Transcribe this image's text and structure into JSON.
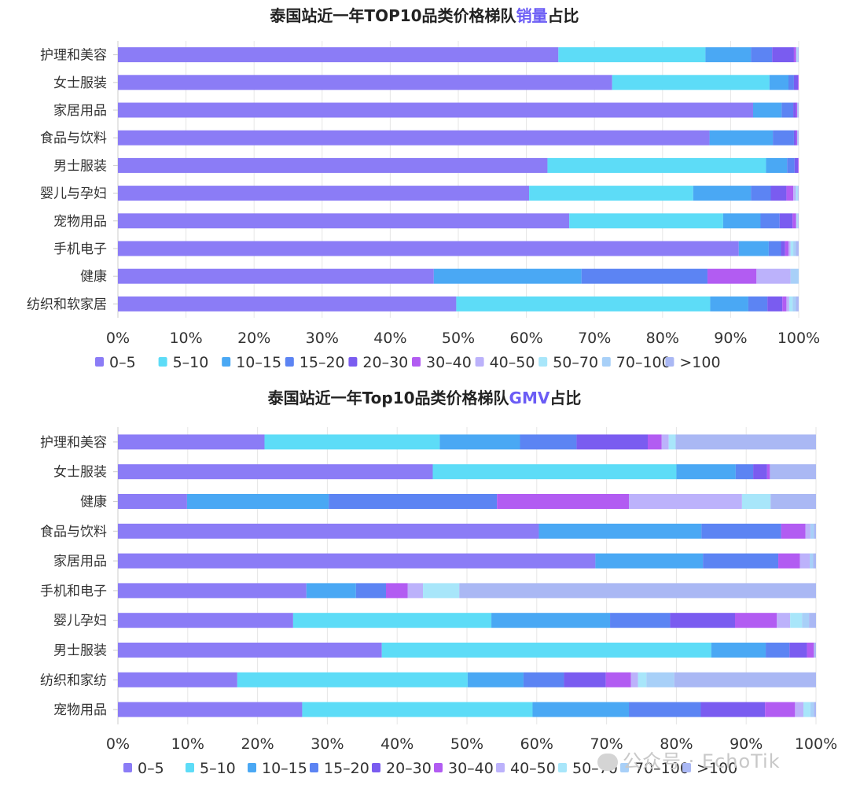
{
  "colors": [
    "#8b7cf6",
    "#5ddcf7",
    "#4aa8f4",
    "#5c84f3",
    "#7a5cf0",
    "#b25cf2",
    "#bcb2fb",
    "#a8e6fa",
    "#a8d0f8",
    "#aab8f4"
  ],
  "chart_data": [
    {
      "type": "bar",
      "orientation": "horizontal",
      "stacked": true,
      "title_parts": [
        {
          "text": "泰国站近一年TOP10品类价格梯队",
          "highlight": false
        },
        {
          "text": "销量",
          "highlight": true
        },
        {
          "text": "占比",
          "highlight": false
        }
      ],
      "categories": [
        "护理和美容",
        "女士服装",
        "家居用品",
        "食品与饮料",
        "男士服装",
        "婴儿与孕妇",
        "宠物用品",
        "手机电子",
        "健康",
        "纺织和软家居"
      ],
      "xlim": [
        0,
        100
      ],
      "xticks": [
        "0%",
        "10%",
        "20%",
        "30%",
        "40%",
        "50%",
        "60%",
        "70%",
        "80%",
        "90%",
        "100%"
      ],
      "grid": true,
      "legend_position": "bottom",
      "series": [
        {
          "name": "0–5",
          "values": [
            64.7,
            72.6,
            93.3,
            86.9,
            63.1,
            60.4,
            66.3,
            91.2,
            46.4,
            49.7
          ]
        },
        {
          "name": "5–10",
          "values": [
            21.6,
            23.1,
            0,
            0,
            32.1,
            24.1,
            22.6,
            0,
            0,
            37.3
          ]
        },
        {
          "name": "10–15",
          "values": [
            6.7,
            2.8,
            4.2,
            9.3,
            3.1,
            8.5,
            5.5,
            4.4,
            21.7,
            5.6
          ]
        },
        {
          "name": "15–20",
          "values": [
            3.1,
            0.8,
            1.7,
            3.1,
            1.1,
            2.9,
            2.8,
            1.8,
            18.5,
            2.8
          ]
        },
        {
          "name": "20–30",
          "values": [
            3.2,
            0.6,
            0.4,
            0.3,
            0.5,
            2.3,
            1.9,
            0.6,
            0,
            2.2
          ]
        },
        {
          "name": "30–40",
          "values": [
            0.3,
            0.1,
            0.2,
            0.2,
            0.1,
            1.0,
            0.5,
            0.5,
            7.2,
            0.6
          ]
        },
        {
          "name": "40–50",
          "values": [
            0.1,
            0,
            0,
            0,
            0,
            0.4,
            0.1,
            0.3,
            5.0,
            0.4
          ]
        },
        {
          "name": "50–70",
          "values": [
            0.1,
            0,
            0,
            0,
            0,
            0.2,
            0.1,
            0.4,
            0,
            0.5
          ]
        },
        {
          "name": "70–100",
          "values": [
            0.1,
            0,
            0.1,
            0.1,
            0,
            0.1,
            0.1,
            0.4,
            1.2,
            0.5
          ]
        },
        {
          "name": ">100",
          "values": [
            0.1,
            0.1,
            0.1,
            0.1,
            0.1,
            0.1,
            0.1,
            0.4,
            0,
            0.4
          ]
        }
      ]
    },
    {
      "type": "bar",
      "orientation": "horizontal",
      "stacked": true,
      "title_parts": [
        {
          "text": "泰国站近一年Top10品类价格梯队",
          "highlight": false
        },
        {
          "text": "GMV",
          "highlight": true
        },
        {
          "text": "占比",
          "highlight": false
        }
      ],
      "categories": [
        "护理和美容",
        "女士服装",
        "健康",
        "食品与饮料",
        "家居用品",
        "手机和电子",
        "婴儿孕妇",
        "男士服装",
        "纺织和家纺",
        "宠物用品"
      ],
      "xlim": [
        0,
        100
      ],
      "xticks": [
        "0%",
        "10%",
        "20%",
        "30%",
        "40%",
        "50%",
        "60%",
        "70%",
        "80%",
        "90%",
        "100%"
      ],
      "grid": true,
      "legend_position": "bottom",
      "series": [
        {
          "name": "0–5",
          "values": [
            21.0,
            45.1,
            9.9,
            60.3,
            68.4,
            27.0,
            25.1,
            37.8,
            17.1,
            26.4
          ]
        },
        {
          "name": "5–10",
          "values": [
            25.1,
            34.9,
            0,
            0,
            0,
            0,
            28.4,
            47.2,
            33.0,
            33.0
          ]
        },
        {
          "name": "10–15",
          "values": [
            11.5,
            8.5,
            20.3,
            23.3,
            15.4,
            7.1,
            17.0,
            7.8,
            8.0,
            13.8
          ]
        },
        {
          "name": "15–20",
          "values": [
            8.1,
            2.5,
            24.1,
            11.4,
            10.8,
            4.3,
            8.6,
            3.4,
            5.8,
            10.3
          ]
        },
        {
          "name": "20–30",
          "values": [
            10.2,
            2.0,
            0,
            0,
            0,
            0,
            9.3,
            2.5,
            6.0,
            9.2
          ]
        },
        {
          "name": "30–40",
          "values": [
            2.0,
            0.4,
            18.9,
            3.5,
            3.1,
            3.1,
            6.0,
            1.0,
            3.6,
            4.3
          ]
        },
        {
          "name": "40–50",
          "values": [
            1.0,
            0,
            16.2,
            0.7,
            1.4,
            2.2,
            1.9,
            0,
            1.0,
            1.2
          ]
        },
        {
          "name": "50–70",
          "values": [
            1.0,
            0,
            4.1,
            0,
            0,
            5.2,
            1.7,
            0,
            1.2,
            1.0
          ]
        },
        {
          "name": "70–100",
          "values": [
            0,
            0,
            0,
            0.5,
            0.5,
            0,
            1.0,
            0,
            4.0,
            0.5
          ]
        },
        {
          "name": ">100",
          "values": [
            20.1,
            6.6,
            6.5,
            0.3,
            0.4,
            51.1,
            1.0,
            0.3,
            20.3,
            0.3
          ]
        }
      ]
    }
  ],
  "watermark": {
    "text": "公众号 · EchoTik"
  }
}
